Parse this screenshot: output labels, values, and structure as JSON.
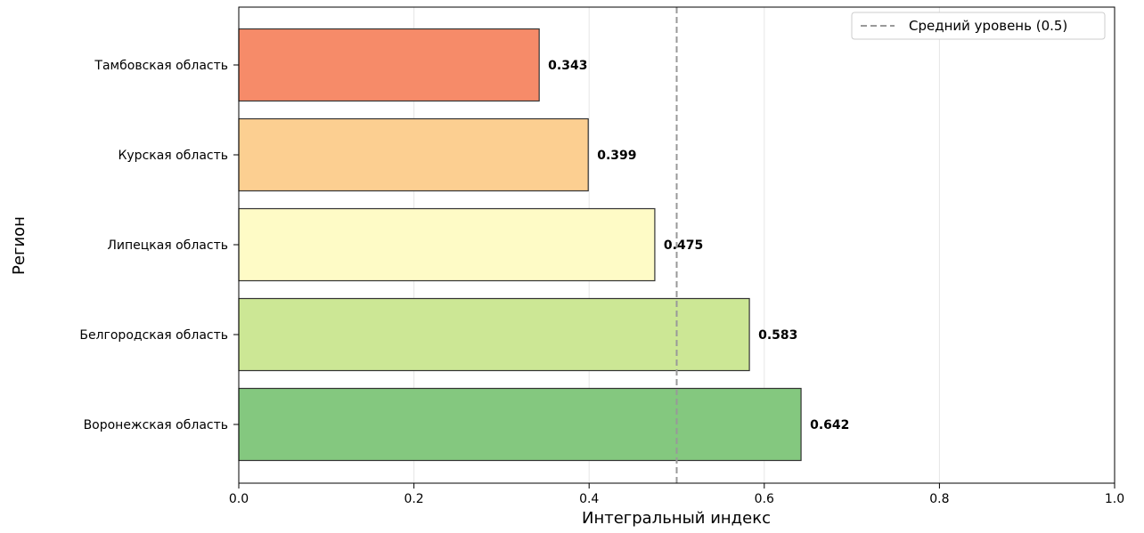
{
  "chart_data": {
    "type": "bar",
    "orientation": "horizontal",
    "title": "",
    "xlabel": "Интегральный индекс",
    "ylabel": "Регион",
    "xlim": [
      0,
      1.0
    ],
    "xticks": [
      0.0,
      0.2,
      0.4,
      0.6,
      0.8,
      1.0
    ],
    "xtick_labels": [
      "0.0",
      "0.2",
      "0.4",
      "0.6",
      "0.8",
      "1.0"
    ],
    "grid": "x",
    "legend_position": "top-right",
    "categories": [
      "Тамбовская область",
      "Курская область",
      "Липецкая область",
      "Белгородская область",
      "Воронежская область"
    ],
    "values": [
      0.343,
      0.399,
      0.475,
      0.583,
      0.642
    ],
    "value_labels": [
      "0.343",
      "0.399",
      "0.475",
      "0.583",
      "0.642"
    ],
    "colors": [
      "#f68b69",
      "#fccf91",
      "#fefbc6",
      "#cce795",
      "#84c87f"
    ],
    "reference_line": {
      "value": 0.5,
      "label": "Средний уровень (0.5)",
      "color": "#999999",
      "style": "dashed"
    }
  }
}
